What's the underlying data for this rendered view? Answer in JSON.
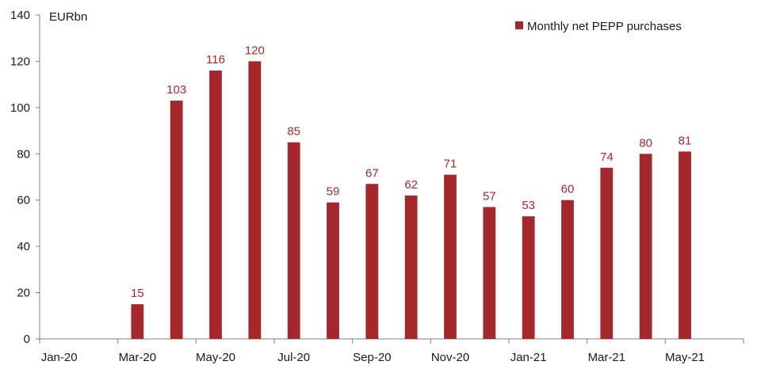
{
  "chart_data": {
    "type": "bar",
    "unit_label": "EURbn",
    "categories": [
      "Jan-20",
      "Feb-20",
      "Mar-20",
      "Apr-20",
      "May-20",
      "Jun-20",
      "Jul-20",
      "Aug-20",
      "Sep-20",
      "Oct-20",
      "Nov-20",
      "Dec-20",
      "Jan-21",
      "Feb-21",
      "Mar-21",
      "Apr-21",
      "May-21",
      "Jun-21"
    ],
    "x_tick_labels": [
      "Jan-20",
      "Mar-20",
      "May-20",
      "Jul-20",
      "Sep-20",
      "Nov-20",
      "Jan-21",
      "Mar-21",
      "May-21"
    ],
    "series": [
      {
        "name": "Monthly net PEPP purchases",
        "values": [
          null,
          null,
          15,
          103,
          116,
          120,
          85,
          59,
          67,
          62,
          71,
          57,
          53,
          60,
          74,
          80,
          81,
          null
        ],
        "labels": [
          "",
          "",
          "15",
          "103",
          "116",
          "120",
          "85",
          "59",
          "67",
          "62",
          "71",
          "57",
          "53",
          "60",
          "74",
          "80",
          "81",
          ""
        ]
      }
    ],
    "ylim": [
      0,
      140
    ],
    "yticks": [
      0,
      20,
      40,
      60,
      80,
      100,
      120,
      140
    ],
    "grid": false,
    "legend_position": "top-right",
    "colors": {
      "bar": "#a4282b",
      "label": "#a4282b",
      "axis": "#7f7f7f"
    }
  }
}
